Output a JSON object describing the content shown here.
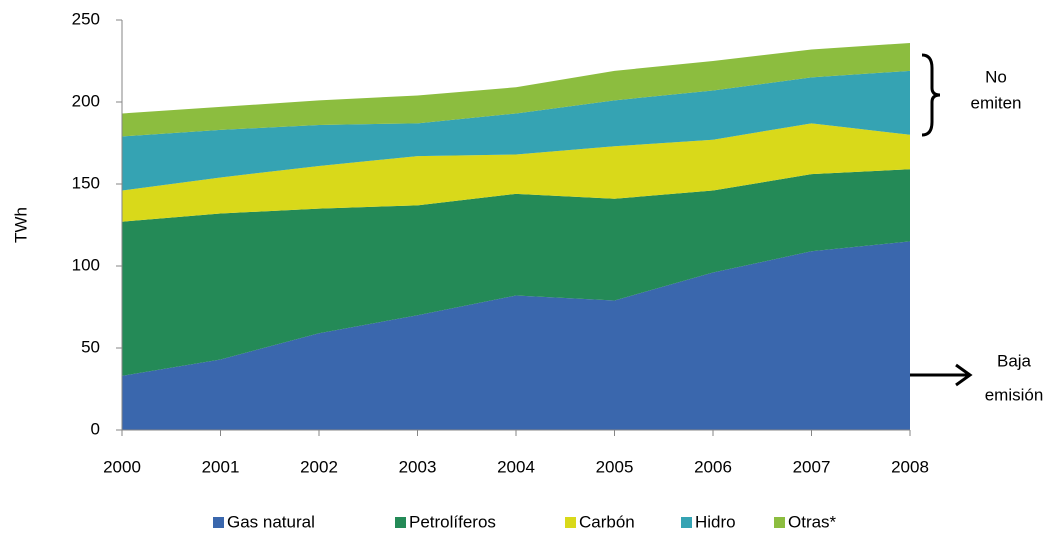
{
  "chart_data": {
    "type": "stacked_area",
    "y_label": "TWh",
    "categories": [
      "2000",
      "2001",
      "2002",
      "2003",
      "2004",
      "2005",
      "2006",
      "2007",
      "2008"
    ],
    "series": [
      {
        "name": "Gas natural",
        "color": "#3a67ad",
        "values": [
          33,
          43,
          59,
          70,
          82,
          79,
          96,
          109,
          115
        ]
      },
      {
        "name": "Petrolíferos",
        "color": "#248a57",
        "values": [
          94,
          89,
          76,
          67,
          62,
          62,
          50,
          47,
          44
        ]
      },
      {
        "name": "Carbón",
        "color": "#d9d91a",
        "values": [
          19,
          22,
          26,
          30,
          24,
          32,
          31,
          31,
          21
        ]
      },
      {
        "name": "Hidro",
        "color": "#35a3b3",
        "values": [
          33,
          29,
          25,
          20,
          25,
          28,
          30,
          28,
          39
        ]
      },
      {
        "name": "Otras*",
        "color": "#8cbd3f",
        "values": [
          14,
          14,
          15,
          17,
          16,
          18,
          18,
          17,
          17
        ]
      }
    ],
    "ylim": [
      0,
      250
    ],
    "yticks": [
      0,
      50,
      100,
      150,
      200,
      250
    ],
    "grid": false,
    "legend": "bottom",
    "annotations": [
      {
        "lines": [
          "No",
          "emiten"
        ]
      },
      {
        "lines": [
          "Baja",
          "emisión"
        ]
      }
    ]
  }
}
